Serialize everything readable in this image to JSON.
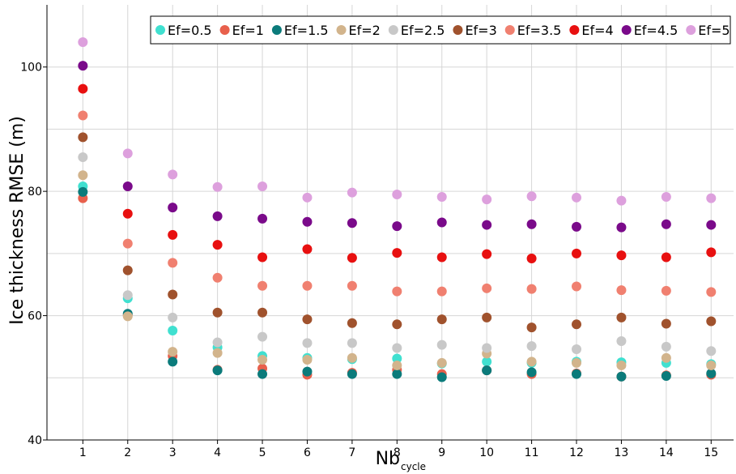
{
  "chart_data": {
    "type": "scatter",
    "ylabel": "Ice thickness RMSE (m)",
    "xlabel": "Nb",
    "xlabel_subscript": "cycle",
    "ylim": [
      40,
      110
    ],
    "xlim": [
      0.2,
      15.5
    ],
    "yticks": [
      40,
      60,
      80,
      100
    ],
    "ygrid_extra": [
      50,
      70,
      90
    ],
    "xticks": [
      1,
      2,
      3,
      4,
      5,
      6,
      7,
      8,
      9,
      10,
      11,
      12,
      13,
      14,
      15
    ],
    "grid": true,
    "legend_position": "top-center",
    "x": [
      1,
      2,
      3,
      4,
      5,
      6,
      7,
      8,
      9,
      10,
      11,
      12,
      13,
      14,
      15
    ],
    "series": [
      {
        "name": "Ef=0.5",
        "color": "#40e0d0",
        "values": [
          80.8,
          62.8,
          57.6,
          54.9,
          53.5,
          53.2,
          53.0,
          53.1,
          52.3,
          52.6,
          52.4,
          52.6,
          52.5,
          52.4,
          52.2
        ]
      },
      {
        "name": "Ef=1",
        "color": "#e8604c",
        "values": [
          78.9,
          60.1,
          53.5,
          51.3,
          51.5,
          50.5,
          50.8,
          51.3,
          50.6,
          51.2,
          50.6,
          50.7,
          50.2,
          50.4,
          50.5
        ]
      },
      {
        "name": "Ef=1.5",
        "color": "#0b7b7b",
        "values": [
          79.9,
          60.3,
          52.6,
          51.2,
          50.6,
          51.0,
          50.6,
          50.6,
          50.1,
          51.2,
          50.9,
          50.6,
          50.2,
          50.3,
          50.7
        ]
      },
      {
        "name": "Ef=2",
        "color": "#d2b48c",
        "values": [
          82.6,
          59.9,
          54.2,
          54.0,
          52.9,
          52.9,
          53.2,
          52.0,
          52.4,
          53.9,
          52.6,
          52.4,
          52.0,
          53.2,
          52.0
        ]
      },
      {
        "name": "Ef=2.5",
        "color": "#c8c8c8",
        "values": [
          85.5,
          63.3,
          59.7,
          55.7,
          56.6,
          55.6,
          55.6,
          54.8,
          55.3,
          54.8,
          55.1,
          54.6,
          55.9,
          55.0,
          54.3
        ]
      },
      {
        "name": "Ef=3",
        "color": "#a0522d",
        "values": [
          88.7,
          67.3,
          63.4,
          60.5,
          60.5,
          59.4,
          58.8,
          58.6,
          59.4,
          59.7,
          58.1,
          58.6,
          59.7,
          58.7,
          59.1
        ]
      },
      {
        "name": "Ef=3.5",
        "color": "#f08070",
        "values": [
          92.2,
          71.6,
          68.5,
          66.1,
          64.8,
          64.8,
          64.8,
          63.9,
          63.9,
          64.4,
          64.3,
          64.7,
          64.1,
          64.0,
          63.8
        ]
      },
      {
        "name": "Ef=4",
        "color": "#e81010",
        "values": [
          96.5,
          76.4,
          73.0,
          71.4,
          69.4,
          70.7,
          69.3,
          70.1,
          69.4,
          69.9,
          69.2,
          70.0,
          69.7,
          69.4,
          70.2
        ]
      },
      {
        "name": "Ef=4.5",
        "color": "#7a0a8a",
        "values": [
          100.2,
          80.8,
          77.4,
          76.0,
          75.6,
          75.1,
          74.9,
          74.4,
          75.0,
          74.6,
          74.7,
          74.3,
          74.2,
          74.7,
          74.6
        ]
      },
      {
        "name": "Ef=5",
        "color": "#dda0dd",
        "values": [
          104.0,
          86.1,
          82.7,
          80.7,
          80.8,
          79.0,
          79.8,
          79.5,
          79.1,
          78.7,
          79.2,
          79.0,
          78.5,
          79.1,
          78.9
        ]
      }
    ]
  }
}
